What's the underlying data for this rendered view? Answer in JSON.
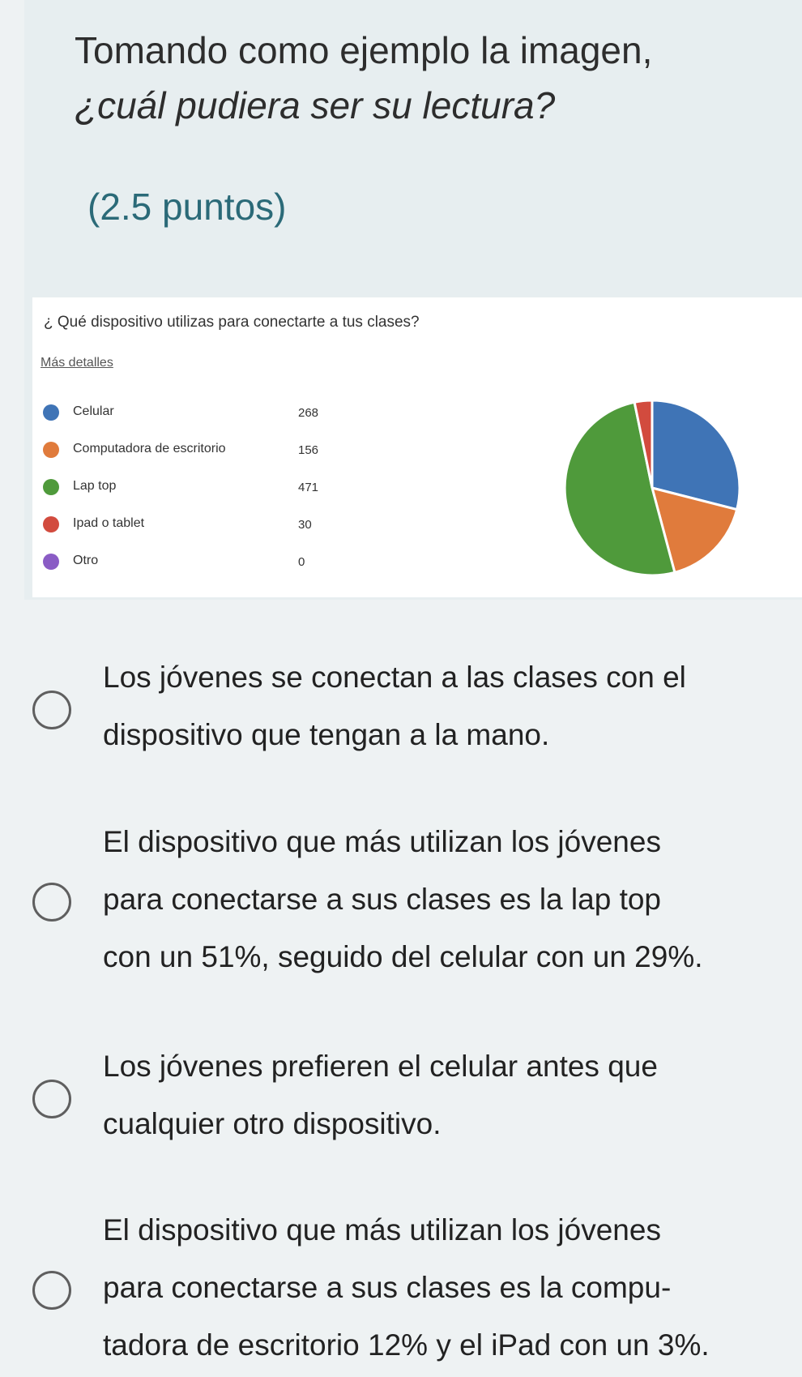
{
  "question": {
    "title_line1": "Tomando como ejemplo la imagen,",
    "title_line2": "¿cuál pudiera ser su lectura?",
    "points": "(2.5 puntos)"
  },
  "chart_panel": {
    "question": "¿ Qué dispositivo utilizas para conectarte a tus clases?",
    "link": "Más detalles"
  },
  "chart_data": {
    "type": "pie",
    "categories": [
      "Celular",
      "Computadora de escritorio",
      "Lap top",
      "Ipad o tablet",
      "Otro"
    ],
    "values": [
      268,
      156,
      471,
      30,
      0
    ],
    "colors": [
      "#3f74b6",
      "#e07b3c",
      "#4f9a3b",
      "#d24b3e",
      "#8a5cc5"
    ],
    "value_labels": [
      "268",
      "156",
      "471",
      "30",
      "0"
    ]
  },
  "options": [
    {
      "lines": [
        "Los jóvenes se conectan a las clases con el",
        "dispositivo que tengan a la mano."
      ]
    },
    {
      "lines": [
        "El dispositivo que más utilizan los jóvenes",
        "para conectarse a sus clases es la lap top",
        "con un 51%, seguido del celular con un 29%."
      ]
    },
    {
      "lines": [
        "Los jóvenes prefieren el celular antes que",
        "cualquier otro dispositivo."
      ]
    },
    {
      "lines": [
        "El dispositivo que más utilizan los jóvenes",
        "para conectarse a sus clases es la compu-",
        "tadora de escritorio 12% y el iPad con un 3%."
      ]
    }
  ]
}
